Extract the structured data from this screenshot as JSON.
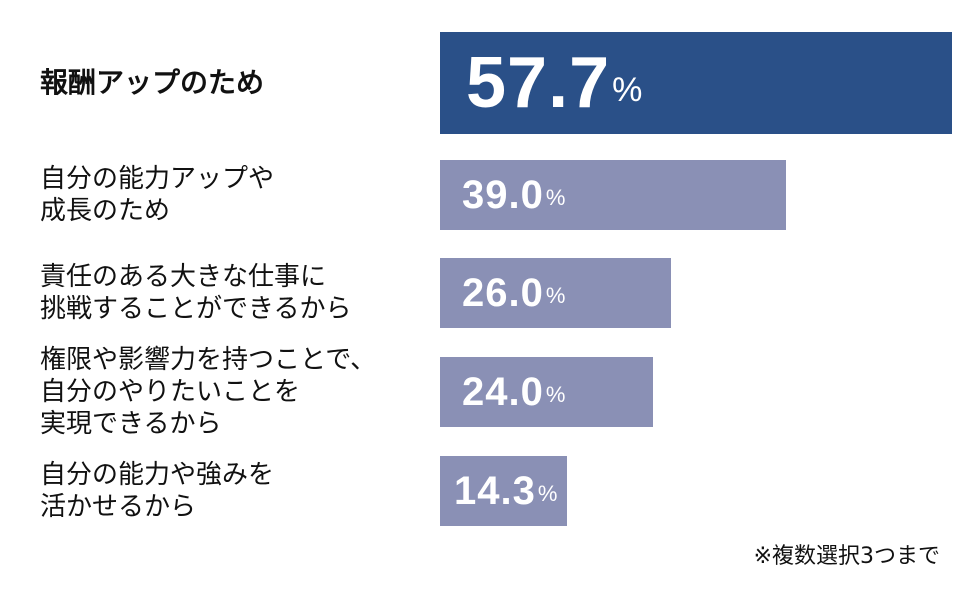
{
  "chart_data": {
    "type": "bar",
    "orientation": "horizontal",
    "categories": [
      "報酬アップのため",
      "自分の能力アップや\n成長のため",
      "責任のある大きな仕事に\n挑戦することができるから",
      "権限や影響力を持つことで、\n自分のやりたいことを\n実現できるから",
      "自分の能力や強みを\n活かせるから"
    ],
    "values": [
      57.7,
      39.0,
      26.0,
      24.0,
      14.3
    ],
    "value_labels": [
      "57.7",
      "39.0",
      "26.0",
      "24.0",
      "14.3"
    ],
    "unit": "%",
    "xlim": [
      0,
      57.7
    ],
    "grid": false,
    "legend": "none",
    "colors": {
      "highlight": "#2a5088",
      "default": "#8a90b5"
    },
    "note": "※複数選択3つまで"
  }
}
